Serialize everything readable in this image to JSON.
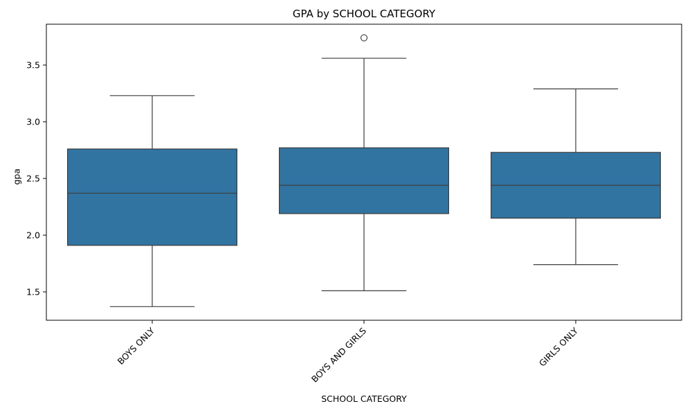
{
  "chart_data": {
    "type": "box",
    "title": "GPA by SCHOOL CATEGORY",
    "xlabel": "SCHOOL CATEGORY",
    "ylabel": "gpa",
    "ylim": [
      1.25,
      3.86
    ],
    "yticks": [
      1.5,
      2.0,
      2.5,
      3.0,
      3.5
    ],
    "ytick_labels": [
      "1.5",
      "2.0",
      "2.5",
      "3.0",
      "3.5"
    ],
    "categories": [
      "BOYS ONLY",
      "BOYS AND GIRLS",
      "GIRLS ONLY"
    ],
    "boxes": [
      {
        "category": "BOYS ONLY",
        "whisker_low": 1.37,
        "q1": 1.91,
        "median": 2.37,
        "q3": 2.76,
        "whisker_high": 3.23,
        "outliers": []
      },
      {
        "category": "BOYS AND GIRLS",
        "whisker_low": 1.51,
        "q1": 2.19,
        "median": 2.44,
        "q3": 2.77,
        "whisker_high": 3.56,
        "outliers": [
          3.74
        ]
      },
      {
        "category": "GIRLS ONLY",
        "whisker_low": 1.74,
        "q1": 2.15,
        "median": 2.44,
        "q3": 2.73,
        "whisker_high": 3.29,
        "outliers": []
      }
    ],
    "box_color": "#3274a1",
    "line_color": "#3d3d3d",
    "grid": false,
    "legend": "none"
  }
}
